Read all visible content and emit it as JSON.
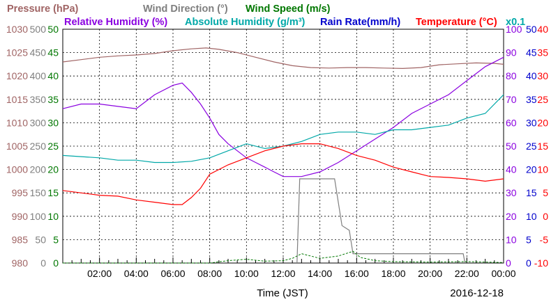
{
  "chart_data": {
    "type": "line",
    "date": "2016-12-18",
    "xlabel": "Time (JST)",
    "x_ticks": [
      "02:00",
      "04:00",
      "06:00",
      "08:00",
      "10:00",
      "12:00",
      "14:00",
      "16:00",
      "18:00",
      "20:00",
      "22:00",
      "00:00"
    ],
    "xlim": [
      0,
      24
    ],
    "grid": true,
    "legend_entries": [
      {
        "label": "Pressure (hPa)",
        "color": "#a06464"
      },
      {
        "label": "Wind Direction (°)",
        "color": "#7f7f7f"
      },
      {
        "label": "Wind Speed (m/s)",
        "color": "#007700"
      },
      {
        "label": "Relative Humidity (%)",
        "color": "#8a00e0"
      },
      {
        "label": "Absolute Humidity (g/m³)",
        "color": "#00a8a8"
      },
      {
        "label": "Rain Rate(mm/h)",
        "color": "#0000cc"
      },
      {
        "label": "Temperature (°C)",
        "color": "#ff0000"
      },
      {
        "label": "x0.1",
        "color": "#00a8a8"
      }
    ],
    "axes": [
      {
        "name": "Pressure (hPa)",
        "side": "left",
        "ticks": [
          "980",
          "985",
          "990",
          "995",
          "1000",
          "1005",
          "1010",
          "1015",
          "1020",
          "1025",
          "1030"
        ],
        "range": [
          980,
          1030
        ],
        "color": "#a06464"
      },
      {
        "name": "Wind Direction (°)",
        "side": "left",
        "ticks": [
          "0",
          "50",
          "100",
          "150",
          "200",
          "250",
          "300",
          "350",
          "400",
          "450",
          "500"
        ],
        "range": [
          0,
          500
        ],
        "color": "#7f7f7f"
      },
      {
        "name": "Wind Speed (m/s)",
        "side": "left",
        "ticks": [
          "0",
          "5",
          "10",
          "15",
          "20",
          "25",
          "30",
          "35",
          "40",
          "45",
          "50"
        ],
        "range": [
          0,
          50
        ],
        "color": "#007700"
      },
      {
        "name": "Relative Humidity (%)",
        "side": "right",
        "ticks": [
          "0",
          "10",
          "20",
          "30",
          "40",
          "50",
          "60",
          "70",
          "80",
          "90",
          "100"
        ],
        "range": [
          0,
          100
        ],
        "color": "#8a00e0"
      },
      {
        "name": "Rain Rate(mm/h)",
        "side": "right",
        "ticks": [
          "0",
          "5",
          "10",
          "15",
          "20",
          "25",
          "30",
          "35",
          "40",
          "45",
          "50"
        ],
        "range": [
          0,
          50
        ],
        "color": "#0000cc"
      },
      {
        "name": "Temperature (°C)",
        "side": "right",
        "ticks": [
          "-10",
          "-5",
          "0",
          "5",
          "10",
          "15",
          "20",
          "25",
          "30",
          "35",
          "40"
        ],
        "range": [
          -10,
          40
        ],
        "color": "#ff0000"
      }
    ],
    "series": [
      {
        "name": "Pressure (hPa)",
        "color": "#a06464",
        "axis": "Pressure (hPa)",
        "points": [
          [
            0,
            1023
          ],
          [
            1,
            1023.5
          ],
          [
            2,
            1024
          ],
          [
            3,
            1024.3
          ],
          [
            4,
            1024.5
          ],
          [
            5,
            1024.8
          ],
          [
            6,
            1025.4
          ],
          [
            7,
            1025.8
          ],
          [
            7.8,
            1026
          ],
          [
            8.5,
            1025.7
          ],
          [
            9.5,
            1025
          ],
          [
            10.5,
            1024
          ],
          [
            11.5,
            1023
          ],
          [
            12.5,
            1022.2
          ],
          [
            13.5,
            1021.8
          ],
          [
            14.5,
            1021.7
          ],
          [
            15.5,
            1021.8
          ],
          [
            16.5,
            1021.8
          ],
          [
            17.5,
            1021.7
          ],
          [
            18.5,
            1021.6
          ],
          [
            19.5,
            1021.8
          ],
          [
            20.5,
            1022.4
          ],
          [
            21.5,
            1022.6
          ],
          [
            22.5,
            1022.8
          ],
          [
            23.5,
            1022.7
          ],
          [
            24,
            1022.5
          ]
        ]
      },
      {
        "name": "Wind Direction (°)",
        "color": "#7f7f7f",
        "axis": "Wind Direction (°)",
        "points": [
          [
            12.75,
            0
          ],
          [
            12.9,
            180
          ],
          [
            13.7,
            180
          ],
          [
            14.8,
            180
          ],
          [
            15.2,
            80
          ],
          [
            15.6,
            70
          ],
          [
            15.8,
            20
          ],
          [
            16,
            20
          ],
          [
            18,
            20
          ],
          [
            21,
            20
          ],
          [
            21.8,
            20
          ],
          [
            21.9,
            0
          ]
        ]
      },
      {
        "name": "Wind Speed (m/s)",
        "color": "#007700",
        "axis": "Wind Speed (m/s)",
        "points": [
          [
            0,
            0
          ],
          [
            8,
            0
          ],
          [
            9,
            0.5
          ],
          [
            10,
            0.8
          ],
          [
            11,
            0.4
          ],
          [
            12,
            0.5
          ],
          [
            12.5,
            1
          ],
          [
            13,
            2
          ],
          [
            13.5,
            1.5
          ],
          [
            14,
            1
          ],
          [
            15,
            1.5
          ],
          [
            15.8,
            2.5
          ],
          [
            16.2,
            1.2
          ],
          [
            17,
            0.5
          ],
          [
            18,
            0.3
          ],
          [
            20,
            0.2
          ],
          [
            22,
            0.3
          ],
          [
            24,
            0.1
          ]
        ]
      },
      {
        "name": "Relative Humidity (%)",
        "color": "#8a00e0",
        "axis": "Relative Humidity (%)",
        "points": [
          [
            0,
            66
          ],
          [
            1,
            68
          ],
          [
            2,
            68
          ],
          [
            3,
            67
          ],
          [
            4,
            66
          ],
          [
            5,
            72
          ],
          [
            6,
            76
          ],
          [
            6.5,
            77
          ],
          [
            7,
            73
          ],
          [
            7.5,
            68
          ],
          [
            8,
            62
          ],
          [
            8.5,
            55
          ],
          [
            9,
            51
          ],
          [
            9.5,
            48
          ],
          [
            10,
            45
          ],
          [
            10.5,
            43
          ],
          [
            11,
            41
          ],
          [
            11.5,
            39
          ],
          [
            12,
            37
          ],
          [
            13,
            37
          ],
          [
            14,
            39
          ],
          [
            15,
            43
          ],
          [
            16,
            48
          ],
          [
            17,
            53
          ],
          [
            18,
            58
          ],
          [
            19,
            64
          ],
          [
            20,
            68
          ],
          [
            21,
            72
          ],
          [
            22,
            78
          ],
          [
            23,
            84
          ],
          [
            24,
            88
          ]
        ]
      },
      {
        "name": "Absolute Humidity (g/m³)",
        "color": "#00a8a8",
        "axis": "Absolute Humidity (g/m³) x0.1",
        "points": [
          [
            0,
            46
          ],
          [
            1,
            45.5
          ],
          [
            2,
            45
          ],
          [
            3,
            44
          ],
          [
            4,
            44
          ],
          [
            5,
            43
          ],
          [
            6,
            43
          ],
          [
            7,
            43.5
          ],
          [
            8,
            45
          ],
          [
            9,
            48
          ],
          [
            10,
            51
          ],
          [
            11,
            49
          ],
          [
            12,
            50
          ],
          [
            13,
            52
          ],
          [
            14,
            55
          ],
          [
            15,
            56
          ],
          [
            16,
            56
          ],
          [
            17,
            55
          ],
          [
            18,
            57
          ],
          [
            19,
            57
          ],
          [
            20,
            58
          ],
          [
            21,
            59
          ],
          [
            22,
            62
          ],
          [
            23,
            64
          ],
          [
            24,
            72
          ]
        ]
      },
      {
        "name": "Temperature (°C)",
        "color": "#ff0000",
        "axis": "Temperature (°C)",
        "points": [
          [
            0,
            5.5
          ],
          [
            1,
            5
          ],
          [
            2,
            4.5
          ],
          [
            3,
            4.3
          ],
          [
            4,
            3.5
          ],
          [
            5,
            3
          ],
          [
            6,
            2.5
          ],
          [
            6.5,
            2.5
          ],
          [
            7,
            4
          ],
          [
            7.5,
            6
          ],
          [
            8,
            9
          ],
          [
            9,
            11
          ],
          [
            10,
            12.5
          ],
          [
            11,
            14
          ],
          [
            12,
            15
          ],
          [
            13,
            15.5
          ],
          [
            14,
            15.5
          ],
          [
            15,
            14.5
          ],
          [
            16,
            13
          ],
          [
            17,
            12
          ],
          [
            18,
            10.5
          ],
          [
            19,
            9.5
          ],
          [
            20,
            8.5
          ],
          [
            21,
            8.3
          ],
          [
            22,
            8
          ],
          [
            23,
            7.5
          ],
          [
            24,
            8
          ]
        ]
      }
    ]
  }
}
